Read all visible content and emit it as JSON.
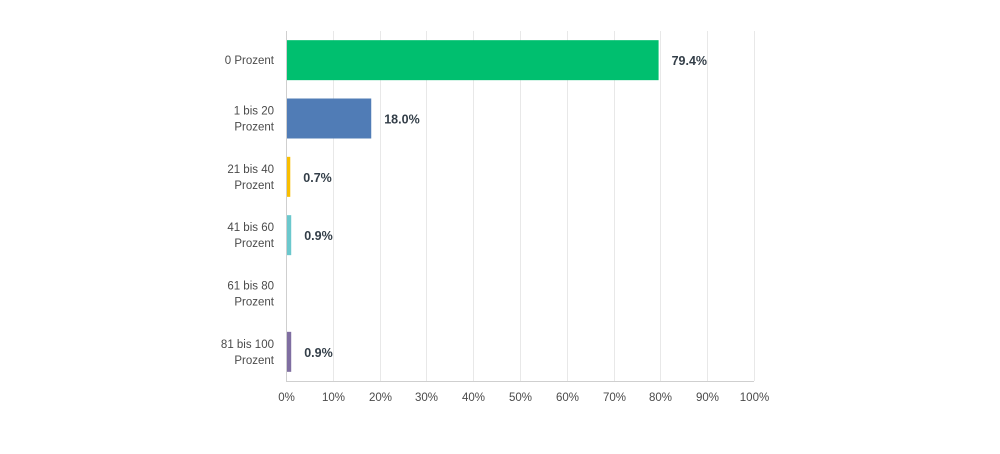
{
  "chart_data": {
    "type": "bar",
    "orientation": "horizontal",
    "categories": [
      [
        "0 Prozent"
      ],
      [
        "1 bis 20",
        "Prozent"
      ],
      [
        "21 bis 40",
        "Prozent"
      ],
      [
        "41 bis 60",
        "Prozent"
      ],
      [
        "61 bis 80",
        "Prozent"
      ],
      [
        "81 bis 100",
        "Prozent"
      ]
    ],
    "values": [
      79.4,
      18.0,
      0.7,
      0.9,
      0,
      0.9
    ],
    "value_labels": [
      "79.4%",
      "18.0%",
      "0.7%",
      "0.9%",
      "",
      "0.9%"
    ],
    "colors": [
      "#00bf6f",
      "#507cb6",
      "#f9be00",
      "#6bc8cd",
      "#ff8b4f",
      "#7f6ea1"
    ],
    "xlim": [
      0,
      100
    ],
    "x_ticks": [
      0,
      10,
      20,
      30,
      40,
      50,
      60,
      70,
      80,
      90,
      100
    ],
    "x_tick_labels": [
      "0%",
      "10%",
      "20%",
      "30%",
      "40%",
      "50%",
      "60%",
      "70%",
      "80%",
      "90%",
      "100%"
    ],
    "grid": true,
    "legend": "none",
    "title": "",
    "xlabel": "",
    "ylabel": ""
  }
}
